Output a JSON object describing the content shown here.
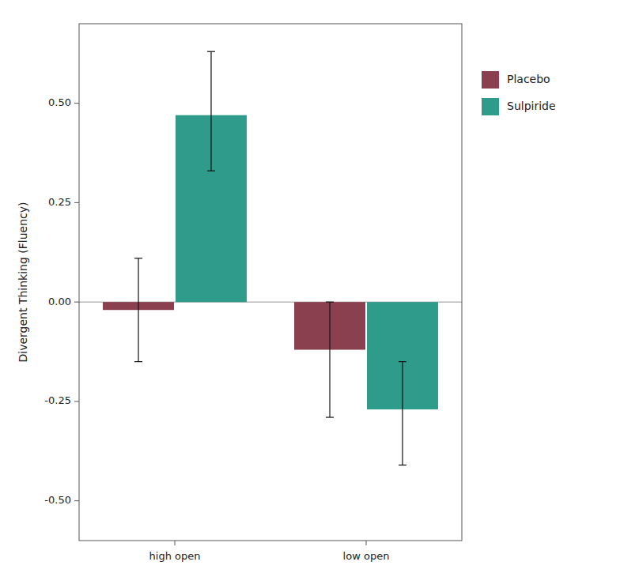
{
  "chart_data": {
    "type": "bar",
    "ylabel": "Divergent Thinking (Fluency)",
    "categories": [
      "high open",
      "low open"
    ],
    "series": [
      {
        "name": "Placebo",
        "color": "#8B4050",
        "values": [
          -0.02,
          -0.12
        ],
        "error_upper": [
          0.13,
          0.12
        ],
        "error_lower": [
          0.13,
          0.17
        ]
      },
      {
        "name": "Sulpiride",
        "color": "#2E9B8B",
        "values": [
          0.47,
          -0.27
        ],
        "error_upper": [
          0.16,
          0.12
        ],
        "error_lower": [
          0.14,
          0.14
        ]
      }
    ],
    "ylim": [
      -0.6,
      0.7
    ],
    "yticks": [
      {
        "value": -0.5,
        "label": "-0.50"
      },
      {
        "value": -0.25,
        "label": "-0.25"
      },
      {
        "value": 0,
        "label": "0.00"
      },
      {
        "value": 0.25,
        "label": "0.25"
      },
      {
        "value": 0.5,
        "label": "0.50"
      }
    ],
    "grid": false,
    "legend": "right"
  }
}
